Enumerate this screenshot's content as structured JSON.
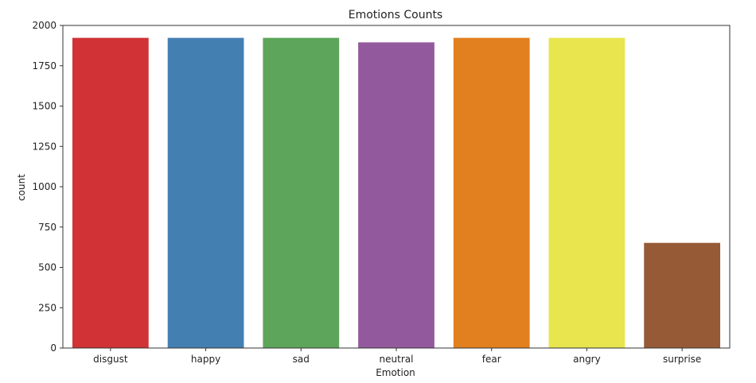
{
  "chart_data": {
    "type": "bar",
    "title": "Emotions Counts",
    "xlabel": "Emotion",
    "ylabel": "count",
    "categories": [
      "disgust",
      "happy",
      "sad",
      "neutral",
      "fear",
      "angry",
      "surprise"
    ],
    "values": [
      1923,
      1923,
      1923,
      1895,
      1923,
      1923,
      652
    ],
    "colors": [
      "#d03236",
      "#447fb2",
      "#5ca55a",
      "#925a9c",
      "#e2801f",
      "#e8e54f",
      "#965a36"
    ],
    "ylim": [
      0,
      2000
    ],
    "yticks": [
      0,
      250,
      500,
      750,
      1000,
      1250,
      1500,
      1750,
      2000
    ],
    "grid": false,
    "legend": "none"
  }
}
